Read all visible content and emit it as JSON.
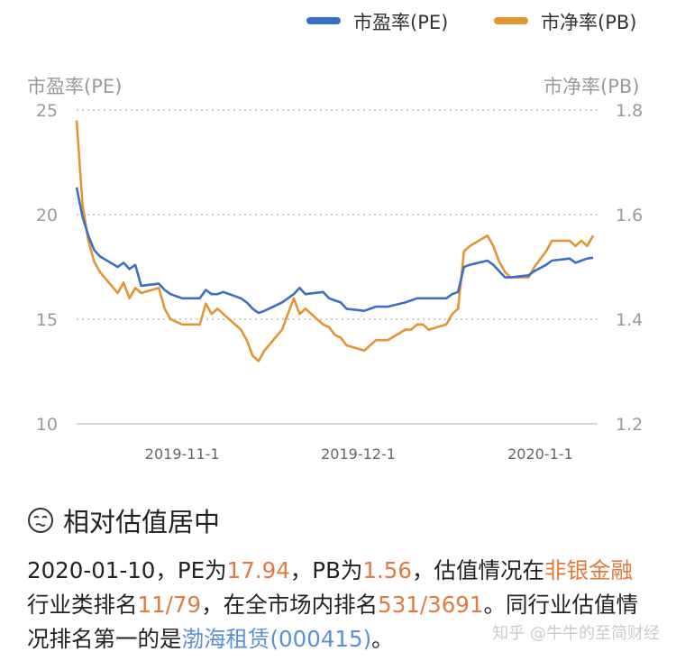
{
  "chart_data": {
    "type": "line",
    "legend": [
      "市盈率(PE)",
      "市净率(PB)"
    ],
    "legend_position": "top-right",
    "y_left": {
      "label": "市盈率(PE)",
      "ticks": [
        "25",
        "20",
        "15",
        "10"
      ],
      "range": [
        10,
        25
      ]
    },
    "y_right": {
      "label": "市净率(PB)",
      "ticks": [
        "1.8",
        "1.6",
        "1.4",
        "1.2"
      ],
      "range": [
        1.2,
        1.8
      ]
    },
    "x_ticks": [
      "2019-11-1",
      "2019-12-1",
      "2020-1-1"
    ],
    "x_dates": [
      "2019-11-01",
      "2019-12-01",
      "2020-01-01"
    ],
    "grid": "dotted horizontal",
    "series": [
      {
        "name": "市盈率(PE)",
        "color": "#3a6fc4",
        "axis": "left",
        "points": [
          [
            "2019-10-14",
            21.3
          ],
          [
            "2019-10-15",
            19.9
          ],
          [
            "2019-10-16",
            19.0
          ],
          [
            "2019-10-17",
            18.3
          ],
          [
            "2019-10-18",
            18.0
          ],
          [
            "2019-10-21",
            17.5
          ],
          [
            "2019-10-22",
            17.7
          ],
          [
            "2019-10-23",
            17.4
          ],
          [
            "2019-10-24",
            17.6
          ],
          [
            "2019-10-25",
            16.6
          ],
          [
            "2019-10-28",
            16.7
          ],
          [
            "2019-10-29",
            16.4
          ],
          [
            "2019-10-30",
            16.2
          ],
          [
            "2019-10-31",
            16.1
          ],
          [
            "2019-11-01",
            16.0
          ],
          [
            "2019-11-04",
            16.0
          ],
          [
            "2019-11-05",
            16.4
          ],
          [
            "2019-11-06",
            16.2
          ],
          [
            "2019-11-07",
            16.2
          ],
          [
            "2019-11-08",
            16.3
          ],
          [
            "2019-11-11",
            16.0
          ],
          [
            "2019-11-12",
            15.8
          ],
          [
            "2019-11-13",
            15.5
          ],
          [
            "2019-11-14",
            15.3
          ],
          [
            "2019-11-15",
            15.4
          ],
          [
            "2019-11-18",
            15.8
          ],
          [
            "2019-11-19",
            16.0
          ],
          [
            "2019-11-20",
            16.2
          ],
          [
            "2019-11-21",
            16.5
          ],
          [
            "2019-11-22",
            16.2
          ],
          [
            "2019-11-25",
            16.3
          ],
          [
            "2019-11-26",
            16.0
          ],
          [
            "2019-11-27",
            15.9
          ],
          [
            "2019-11-28",
            15.8
          ],
          [
            "2019-11-29",
            15.5
          ],
          [
            "2019-12-02",
            15.4
          ],
          [
            "2019-12-03",
            15.5
          ],
          [
            "2019-12-04",
            15.6
          ],
          [
            "2019-12-05",
            15.6
          ],
          [
            "2019-12-06",
            15.6
          ],
          [
            "2019-12-09",
            15.8
          ],
          [
            "2019-12-10",
            15.9
          ],
          [
            "2019-12-11",
            16.0
          ],
          [
            "2019-12-12",
            16.0
          ],
          [
            "2019-12-13",
            16.0
          ],
          [
            "2019-12-16",
            16.0
          ],
          [
            "2019-12-17",
            16.2
          ],
          [
            "2019-12-18",
            16.3
          ],
          [
            "2019-12-19",
            17.5
          ],
          [
            "2019-12-20",
            17.6
          ],
          [
            "2019-12-23",
            17.8
          ],
          [
            "2019-12-24",
            17.6
          ],
          [
            "2019-12-25",
            17.3
          ],
          [
            "2019-12-26",
            17.0
          ],
          [
            "2019-12-27",
            17.0
          ],
          [
            "2019-12-30",
            17.1
          ],
          [
            "2019-12-31",
            17.3
          ],
          [
            "2020-01-02",
            17.6
          ],
          [
            "2020-01-03",
            17.8
          ],
          [
            "2020-01-06",
            17.9
          ],
          [
            "2020-01-07",
            17.7
          ],
          [
            "2020-01-08",
            17.8
          ],
          [
            "2020-01-09",
            17.9
          ],
          [
            "2020-01-10",
            17.94
          ]
        ]
      },
      {
        "name": "市净率(PB)",
        "color": "#e39532",
        "axis": "right",
        "points": [
          [
            "2019-10-14",
            1.78
          ],
          [
            "2019-10-15",
            1.62
          ],
          [
            "2019-10-16",
            1.55
          ],
          [
            "2019-10-17",
            1.51
          ],
          [
            "2019-10-18",
            1.49
          ],
          [
            "2019-10-21",
            1.45
          ],
          [
            "2019-10-22",
            1.47
          ],
          [
            "2019-10-23",
            1.44
          ],
          [
            "2019-10-24",
            1.46
          ],
          [
            "2019-10-25",
            1.45
          ],
          [
            "2019-10-28",
            1.46
          ],
          [
            "2019-10-29",
            1.42
          ],
          [
            "2019-10-30",
            1.4
          ],
          [
            "2019-10-31",
            1.395
          ],
          [
            "2019-11-01",
            1.39
          ],
          [
            "2019-11-04",
            1.39
          ],
          [
            "2019-11-05",
            1.43
          ],
          [
            "2019-11-06",
            1.41
          ],
          [
            "2019-11-07",
            1.42
          ],
          [
            "2019-11-08",
            1.41
          ],
          [
            "2019-11-11",
            1.38
          ],
          [
            "2019-11-12",
            1.36
          ],
          [
            "2019-11-13",
            1.33
          ],
          [
            "2019-11-14",
            1.32
          ],
          [
            "2019-11-15",
            1.34
          ],
          [
            "2019-11-18",
            1.38
          ],
          [
            "2019-11-19",
            1.41
          ],
          [
            "2019-11-20",
            1.44
          ],
          [
            "2019-11-21",
            1.41
          ],
          [
            "2019-11-22",
            1.42
          ],
          [
            "2019-11-25",
            1.39
          ],
          [
            "2019-11-26",
            1.385
          ],
          [
            "2019-11-27",
            1.37
          ],
          [
            "2019-11-28",
            1.365
          ],
          [
            "2019-11-29",
            1.35
          ],
          [
            "2019-12-02",
            1.34
          ],
          [
            "2019-12-03",
            1.35
          ],
          [
            "2019-12-04",
            1.36
          ],
          [
            "2019-12-05",
            1.36
          ],
          [
            "2019-12-06",
            1.36
          ],
          [
            "2019-12-09",
            1.38
          ],
          [
            "2019-12-10",
            1.38
          ],
          [
            "2019-12-11",
            1.39
          ],
          [
            "2019-12-12",
            1.39
          ],
          [
            "2019-12-13",
            1.38
          ],
          [
            "2019-12-16",
            1.39
          ],
          [
            "2019-12-17",
            1.41
          ],
          [
            "2019-12-18",
            1.42
          ],
          [
            "2019-12-19",
            1.53
          ],
          [
            "2019-12-20",
            1.54
          ],
          [
            "2019-12-23",
            1.56
          ],
          [
            "2019-12-24",
            1.54
          ],
          [
            "2019-12-25",
            1.51
          ],
          [
            "2019-12-26",
            1.49
          ],
          [
            "2019-12-27",
            1.48
          ],
          [
            "2019-12-30",
            1.48
          ],
          [
            "2019-12-31",
            1.5
          ],
          [
            "2020-01-02",
            1.53
          ],
          [
            "2020-01-03",
            1.55
          ],
          [
            "2020-01-06",
            1.55
          ],
          [
            "2020-01-07",
            1.54
          ],
          [
            "2020-01-08",
            1.55
          ],
          [
            "2020-01-09",
            1.54
          ],
          [
            "2020-01-10",
            1.56
          ]
        ]
      }
    ]
  },
  "summary": {
    "title": "相对估值居中",
    "date": "2020-01-10",
    "t1": "，PE为",
    "pe": "17.94",
    "t2": "，PB为",
    "pb": "1.56",
    "t3": "，估值情况在",
    "industry": "非银金融",
    "t4": "行业类排名",
    "industry_rank": "11/79",
    "t5": "，在全市场内排名",
    "market_rank": "531/3691",
    "t6": "。同行业估值情况排名第一的是",
    "top_company": "渤海租赁(000415)",
    "t7": "。"
  },
  "watermark": "知乎 @牛牛的至简财经"
}
